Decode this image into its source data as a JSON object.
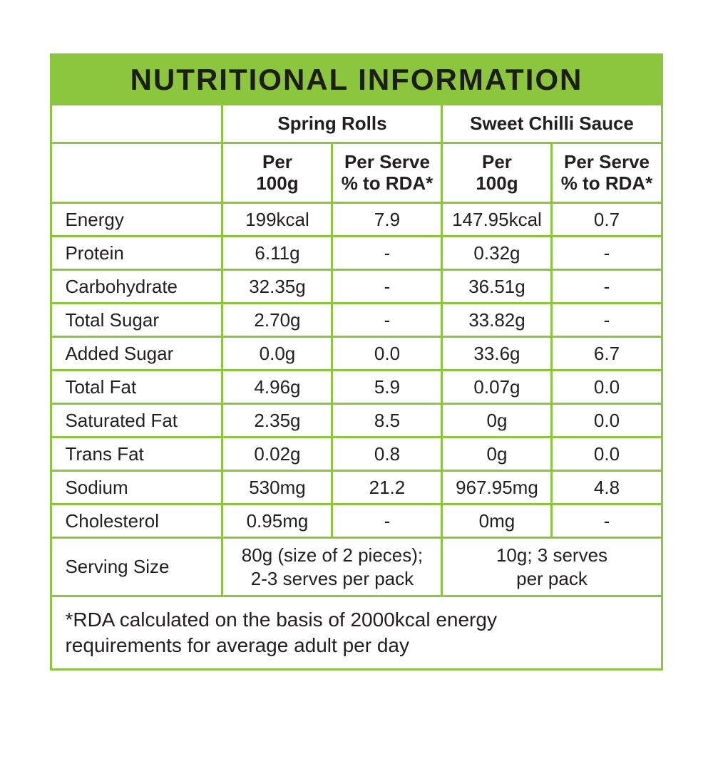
{
  "header": {
    "title": "NUTRITIONAL INFORMATION"
  },
  "products": [
    {
      "name": "Spring Rolls"
    },
    {
      "name": "Sweet Chilli Sauce"
    }
  ],
  "column_headers": {
    "per_100g": "Per\n100g",
    "per_serve": "Per Serve\n% to RDA*"
  },
  "rows": [
    {
      "label": "Energy",
      "sr_100g": "199kcal",
      "sr_serve": "7.9",
      "sc_100g": "147.95kcal",
      "sc_serve": "0.7"
    },
    {
      "label": "Protein",
      "sr_100g": "6.11g",
      "sr_serve": "-",
      "sc_100g": "0.32g",
      "sc_serve": "-"
    },
    {
      "label": "Carbohydrate",
      "sr_100g": "32.35g",
      "sr_serve": "-",
      "sc_100g": "36.51g",
      "sc_serve": "-"
    },
    {
      "label": "Total Sugar",
      "sr_100g": "2.70g",
      "sr_serve": "-",
      "sc_100g": "33.82g",
      "sc_serve": "-"
    },
    {
      "label": "Added Sugar",
      "sr_100g": "0.0g",
      "sr_serve": "0.0",
      "sc_100g": "33.6g",
      "sc_serve": "6.7"
    },
    {
      "label": "Total Fat",
      "sr_100g": "4.96g",
      "sr_serve": "5.9",
      "sc_100g": "0.07g",
      "sc_serve": "0.0"
    },
    {
      "label": "Saturated Fat",
      "sr_100g": "2.35g",
      "sr_serve": "8.5",
      "sc_100g": "0g",
      "sc_serve": "0.0"
    },
    {
      "label": "Trans Fat",
      "sr_100g": "0.02g",
      "sr_serve": "0.8",
      "sc_100g": "0g",
      "sc_serve": "0.0"
    },
    {
      "label": "Sodium",
      "sr_100g": "530mg",
      "sr_serve": "21.2",
      "sc_100g": "967.95mg",
      "sc_serve": "4.8"
    },
    {
      "label": "Cholesterol",
      "sr_100g": "0.95mg",
      "sr_serve": "-",
      "sc_100g": "0mg",
      "sc_serve": "-"
    }
  ],
  "serving_size": {
    "label": "Serving Size",
    "spring_rolls": "80g (size of 2 pieces);\n2-3 serves per pack",
    "sweet_chilli": "10g; 3 serves\nper pack"
  },
  "footnote": "*RDA calculated on the basis of 2000kcal energy\nrequirements for average adult per day",
  "colors": {
    "accent_green": "#8cc63f",
    "text": "#231f20"
  }
}
